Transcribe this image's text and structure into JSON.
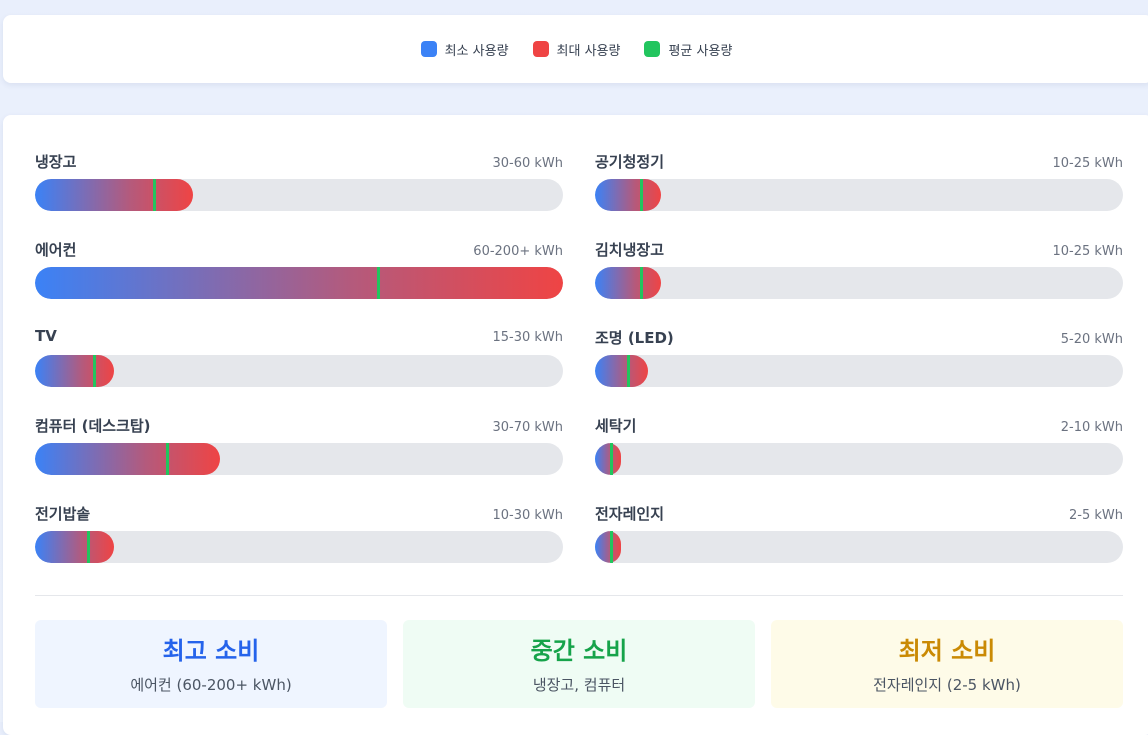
{
  "legend": {
    "items": [
      {
        "label": "최소 사용량",
        "color": "#3b82f6"
      },
      {
        "label": "최대 사용량",
        "color": "#ef4444"
      },
      {
        "label": "평균 사용량",
        "color": "#22c55e"
      }
    ]
  },
  "chart_data": {
    "type": "bar",
    "unit": "kWh",
    "scale_max": 200,
    "items": [
      {
        "name": "냉장고",
        "range_label": "30-60 kWh",
        "min": 30,
        "max": 60,
        "avg": 45
      },
      {
        "name": "공기청정기",
        "range_label": "10-25 kWh",
        "min": 10,
        "max": 25,
        "avg": 17.5
      },
      {
        "name": "에어컨",
        "range_label": "60-200+ kWh",
        "min": 60,
        "max": 200,
        "avg": 130
      },
      {
        "name": "김치냉장고",
        "range_label": "10-25 kWh",
        "min": 10,
        "max": 25,
        "avg": 17.5
      },
      {
        "name": "TV",
        "range_label": "15-30 kWh",
        "min": 15,
        "max": 30,
        "avg": 22.5
      },
      {
        "name": "조명 (LED)",
        "range_label": "5-20 kWh",
        "min": 5,
        "max": 20,
        "avg": 12.5
      },
      {
        "name": "컴퓨터 (데스크탑)",
        "range_label": "30-70 kWh",
        "min": 30,
        "max": 70,
        "avg": 50
      },
      {
        "name": "세탁기",
        "range_label": "2-10 kWh",
        "min": 2,
        "max": 10,
        "avg": 6
      },
      {
        "name": "전기밥솥",
        "range_label": "10-30 kWh",
        "min": 10,
        "max": 30,
        "avg": 20
      },
      {
        "name": "전자레인지",
        "range_label": "2-5 kWh",
        "min": 2,
        "max": 5,
        "avg": 3.5
      }
    ]
  },
  "summary": {
    "high": {
      "title": "최고 소비",
      "desc": "에어컨 (60-200+ kWh)"
    },
    "mid": {
      "title": "중간 소비",
      "desc": "냉장고, 컴퓨터"
    },
    "low": {
      "title": "최저 소비",
      "desc": "전자레인지 (2-5 kWh)"
    }
  }
}
